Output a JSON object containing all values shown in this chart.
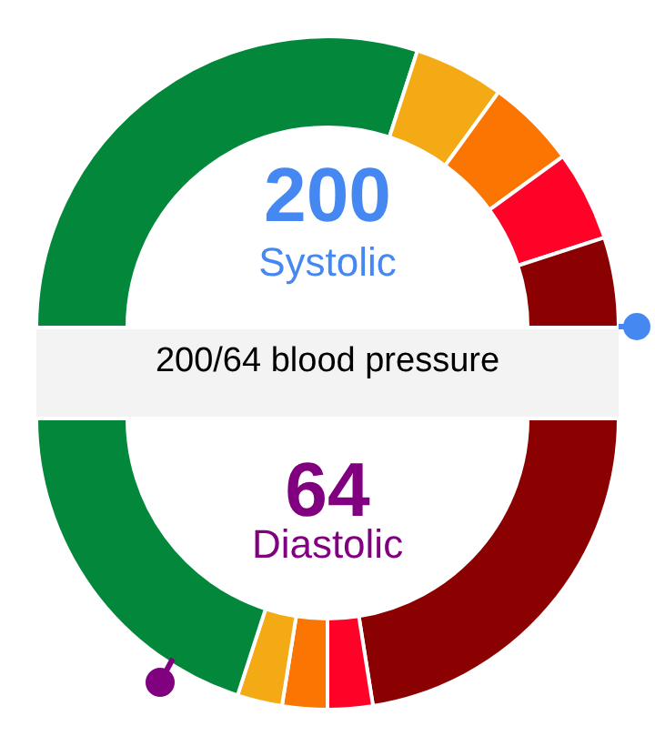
{
  "chart_data": [
    {
      "type": "donut",
      "title": "200/64 blood pressure",
      "annotations": [
        "200",
        "Systolic"
      ],
      "categories": [
        null,
        null,
        null,
        null,
        null
      ],
      "values": [
        60,
        10,
        10,
        10,
        10
      ],
      "colors": [
        "#03873a",
        "#f4aa15",
        "#fb7503",
        "#ff0227",
        "#8b0000"
      ]
    },
    {
      "type": "donut",
      "annotations": [
        "64",
        "Diastolic"
      ],
      "categories": [
        null,
        null,
        null,
        null,
        null
      ],
      "values": [
        45,
        5,
        5,
        5,
        40
      ],
      "colors": [
        "#8b0000",
        "#ff0227",
        "#fb7503",
        "#f4aa15",
        "#03873a"
      ]
    }
  ]
}
